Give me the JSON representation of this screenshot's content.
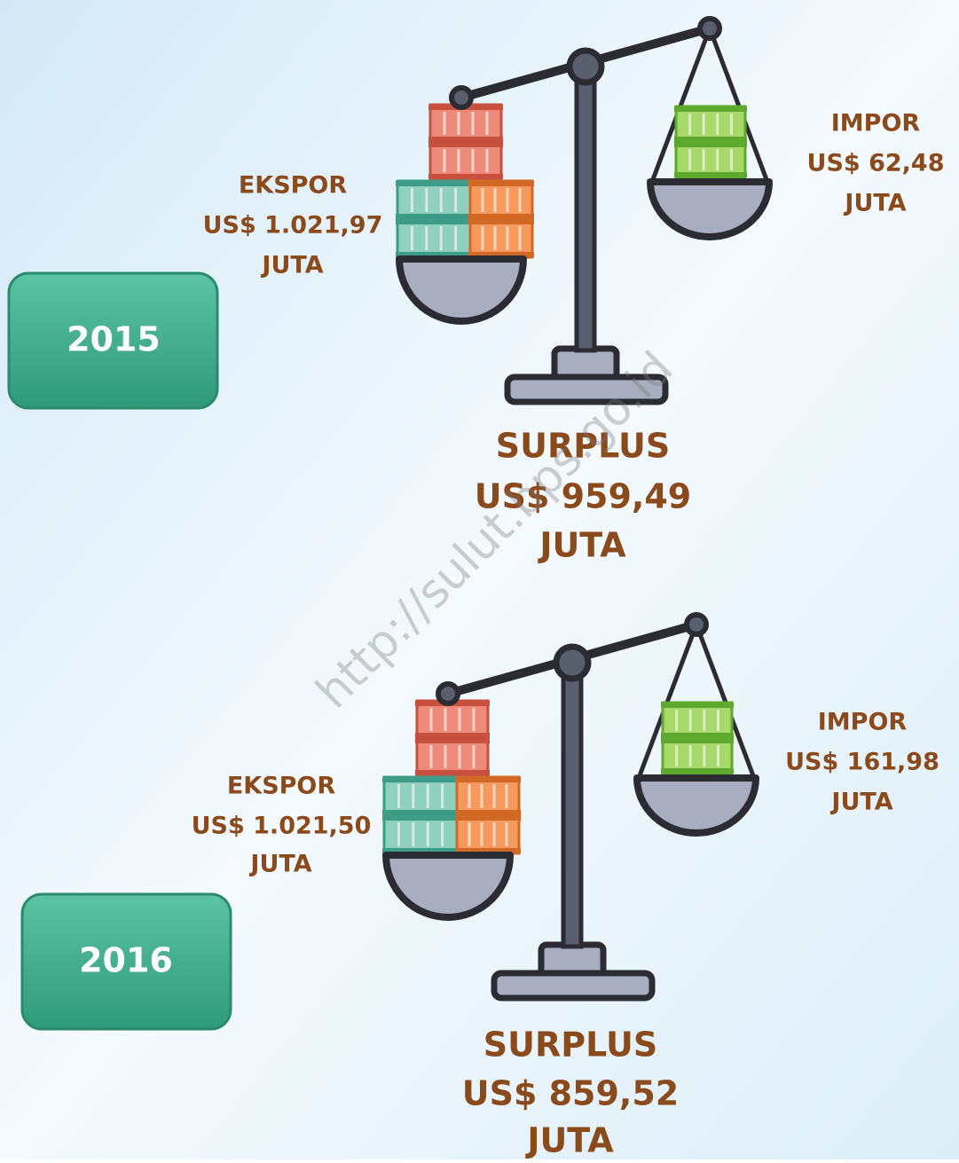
{
  "watermark": "http://sulut.bps.go.id",
  "panels": [
    {
      "year": "2015",
      "export": {
        "label": "EKSPOR",
        "value": "US$ 1.021,97",
        "unit": "JUTA"
      },
      "import": {
        "label": "IMPOR",
        "value": "US$ 62,48",
        "unit": "JUTA"
      },
      "surplus": {
        "label": "SURPLUS",
        "value": "US$ 959,49",
        "unit": "JUTA"
      }
    },
    {
      "year": "2016",
      "export": {
        "label": "EKSPOR",
        "value": "US$ 1.021,50",
        "unit": "JUTA"
      },
      "import": {
        "label": "IMPOR",
        "value": "US$ 161,98",
        "unit": "JUTA"
      },
      "surplus": {
        "label": "SURPLUS",
        "value": "US$ 859,52",
        "unit": "JUTA"
      }
    }
  ]
}
